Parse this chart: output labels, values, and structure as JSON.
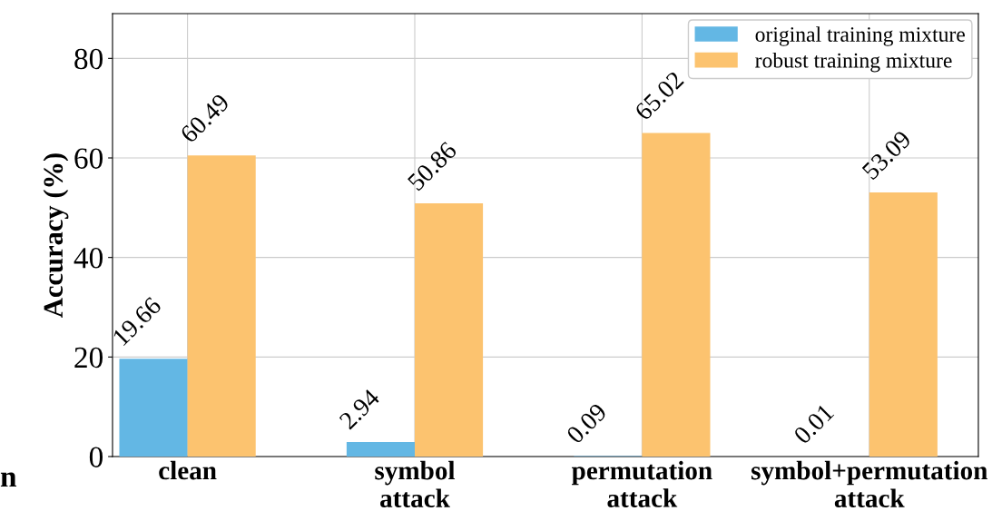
{
  "chart_data": {
    "type": "bar",
    "ylabel": "Accuracy (%)",
    "categories": [
      "clean",
      "symbol\nattack",
      "permutation\nattack",
      "symbol+permutation\nattack"
    ],
    "series": [
      {
        "name": "original training mixture",
        "color": "#63b7e4",
        "values": [
          19.66,
          2.94,
          0.09,
          0.01
        ]
      },
      {
        "name": "robust training mixture",
        "color": "#fcc36f",
        "values": [
          60.49,
          50.86,
          65.02,
          53.09
        ]
      }
    ],
    "ylim": [
      0,
      89
    ],
    "yticks": [
      0,
      20,
      40,
      60,
      80
    ],
    "grid": true,
    "legend": "top right",
    "data_labels": true,
    "annotations": [
      "n"
    ]
  }
}
